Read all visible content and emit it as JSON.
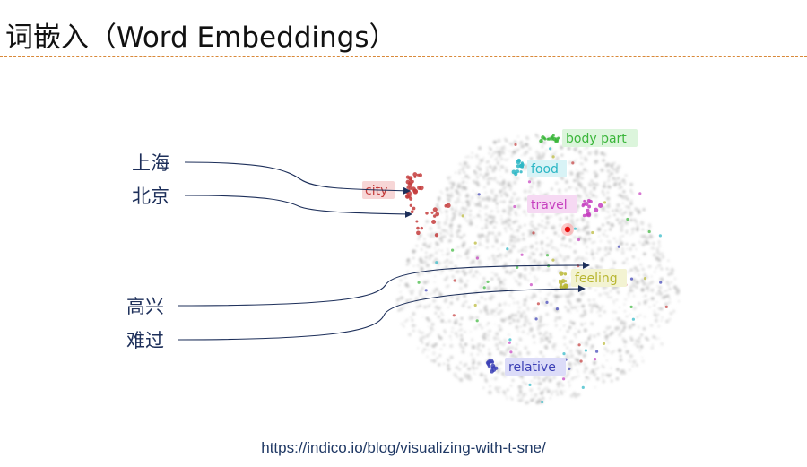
{
  "title": "词嵌入（Word Embeddings）",
  "words": [
    {
      "id": "shanghai",
      "text": "上海"
    },
    {
      "id": "beijing",
      "text": "北京"
    },
    {
      "id": "gaoxing",
      "text": "高兴"
    },
    {
      "id": "nanguo",
      "text": "难过"
    }
  ],
  "clusters": [
    {
      "id": "body-part",
      "label": "body part",
      "color": "#3bb63b",
      "bg": "#dcf5dc"
    },
    {
      "id": "food",
      "label": "food",
      "color": "#2bb6c4",
      "bg": "#d8f3f6"
    },
    {
      "id": "city",
      "label": "city",
      "color": "#c43c3c",
      "bg": "#f7d6d6"
    },
    {
      "id": "travel",
      "label": "travel",
      "color": "#c63fbf",
      "bg": "#f6d9f3"
    },
    {
      "id": "feeling",
      "label": "feeling",
      "color": "#b8b632",
      "bg": "#f3f3d2"
    },
    {
      "id": "relative",
      "label": "relative",
      "color": "#3b3fb5",
      "bg": "#dcdcf8"
    }
  ],
  "source_url": "https://indico.io/blog/visualizing-with-t-sne/"
}
